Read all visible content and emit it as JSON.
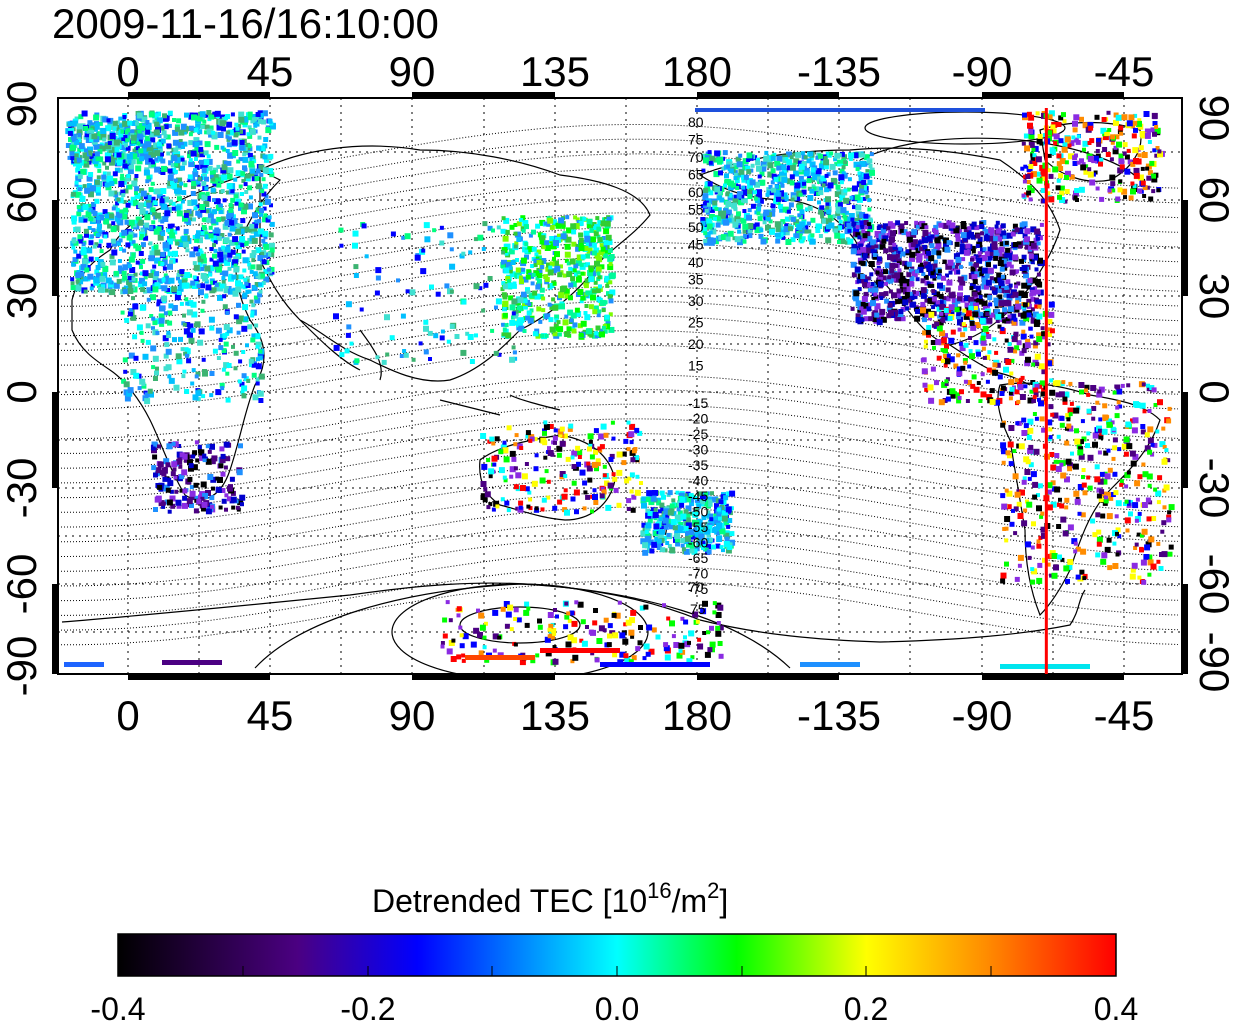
{
  "title": "2009-11-16/16:10:00",
  "map": {
    "top_axis_labels": [
      "0",
      "45",
      "90",
      "135",
      "180",
      "-135",
      "-90",
      "-45"
    ],
    "bottom_axis_labels": [
      "0",
      "45",
      "90",
      "135",
      "180",
      "-135",
      "-90",
      "-45"
    ],
    "left_axis_labels": [
      "90",
      "60",
      "30",
      "0",
      "-30",
      "-60",
      "-90"
    ],
    "right_axis_labels": [
      "90",
      "60",
      "30",
      "0",
      "-30",
      "-60",
      "-90"
    ],
    "north_contour_labels": [
      "80",
      "75",
      "70",
      "65",
      "60",
      "55",
      "50",
      "45",
      "40",
      "35",
      "30",
      "25",
      "20",
      "15"
    ],
    "south_contour_labels": [
      "-15",
      "-20",
      "-25",
      "-30",
      "-35",
      "-40",
      "-45",
      "-50",
      "-55",
      "-60",
      "-65",
      "-70",
      "-75"
    ],
    "south_polar_labels": [
      "70",
      "75"
    ],
    "terminator_longitude": -70,
    "terminator_color": "#ff0000",
    "grid": true
  },
  "colorbar": {
    "label_main": "Detrended TEC  [10",
    "label_exp": "16",
    "label_mid": "/m",
    "label_exp2": "2",
    "label_end": "]",
    "tick_labels": [
      "-0.4",
      "-0.2",
      "0.0",
      "0.2",
      "0.4"
    ],
    "min": -0.4,
    "max": 0.4,
    "colors": [
      "#000000",
      "#4b0082",
      "#0000ff",
      "#00ffff",
      "#00ff00",
      "#ffff00",
      "#ff0000"
    ]
  }
}
